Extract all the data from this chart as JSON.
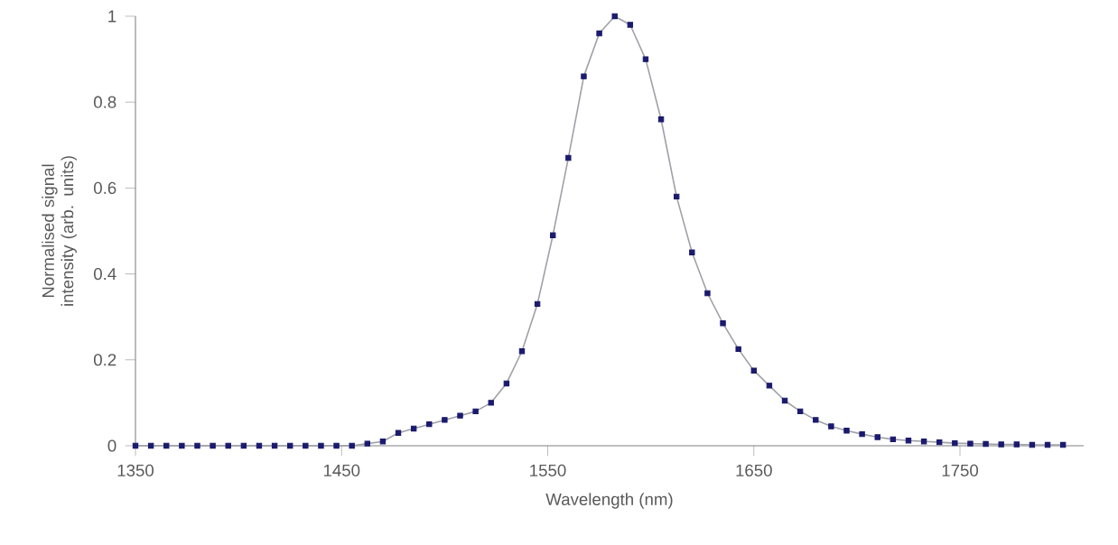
{
  "chart_data": {
    "type": "scatter",
    "xlabel": "Wavelength (nm)",
    "ylabel": "Normalised signal intensity (arb. units)",
    "x": [
      1350,
      1357.5,
      1365,
      1372.5,
      1380,
      1387.5,
      1395,
      1402.5,
      1410,
      1417.5,
      1425,
      1432.5,
      1440,
      1447.5,
      1455,
      1462.5,
      1470,
      1477.5,
      1485,
      1492.5,
      1500,
      1507.5,
      1515,
      1522.5,
      1530,
      1537.5,
      1545,
      1552.5,
      1560,
      1567.5,
      1575,
      1582.5,
      1590,
      1597.5,
      1605,
      1612.5,
      1620,
      1627.5,
      1635,
      1642.5,
      1650,
      1657.5,
      1665,
      1672.5,
      1680,
      1687.5,
      1695,
      1702.5,
      1710,
      1717.5,
      1725,
      1732.5,
      1740,
      1747.5,
      1755,
      1762.5,
      1770,
      1777.5,
      1785,
      1792.5,
      1800
    ],
    "series": [
      {
        "type": "line",
        "color": "#a0a0a8",
        "marker": "none",
        "values": [
          0,
          0,
          0,
          0,
          0,
          0,
          0,
          0,
          0,
          0,
          0,
          0,
          0,
          0,
          0,
          0.005,
          0.01,
          0.03,
          0.04,
          0.05,
          0.06,
          0.07,
          0.08,
          0.1,
          0.145,
          0.22,
          0.33,
          0.49,
          0.67,
          0.86,
          0.96,
          1.0,
          0.98,
          0.9,
          0.76,
          0.58,
          0.45,
          0.355,
          0.285,
          0.225,
          0.175,
          0.14,
          0.105,
          0.08,
          0.06,
          0.045,
          0.035,
          0.027,
          0.02,
          0.015,
          0.012,
          0.01,
          0.008,
          0.006,
          0.005,
          0.004,
          0.003,
          0.003,
          0.002,
          0.002,
          0.002
        ]
      },
      {
        "color": "#1a1a6e",
        "marker": "square",
        "values": [
          0,
          0,
          0,
          0,
          0,
          0,
          0,
          0,
          0,
          0,
          0,
          0,
          0,
          0,
          0,
          0.005,
          0.01,
          0.03,
          0.04,
          0.05,
          0.06,
          0.07,
          0.08,
          0.1,
          0.145,
          0.22,
          0.33,
          0.49,
          0.67,
          0.86,
          0.96,
          1.0,
          0.98,
          0.9,
          0.76,
          0.58,
          0.45,
          0.355,
          0.285,
          0.225,
          0.175,
          0.14,
          0.105,
          0.08,
          0.06,
          0.045,
          0.035,
          0.027,
          0.02,
          0.015,
          0.012,
          0.01,
          0.008,
          0.006,
          0.005,
          0.004,
          0.003,
          0.003,
          0.002,
          0.002,
          0.002
        ]
      }
    ],
    "xlim": [
      1350,
      1810
    ],
    "ylim": [
      0,
      1
    ],
    "xticks": [
      1350,
      1450,
      1550,
      1650,
      1750
    ],
    "yticks": [
      0,
      0.2,
      0.4,
      0.6,
      0.8,
      1
    ],
    "grid": false
  }
}
